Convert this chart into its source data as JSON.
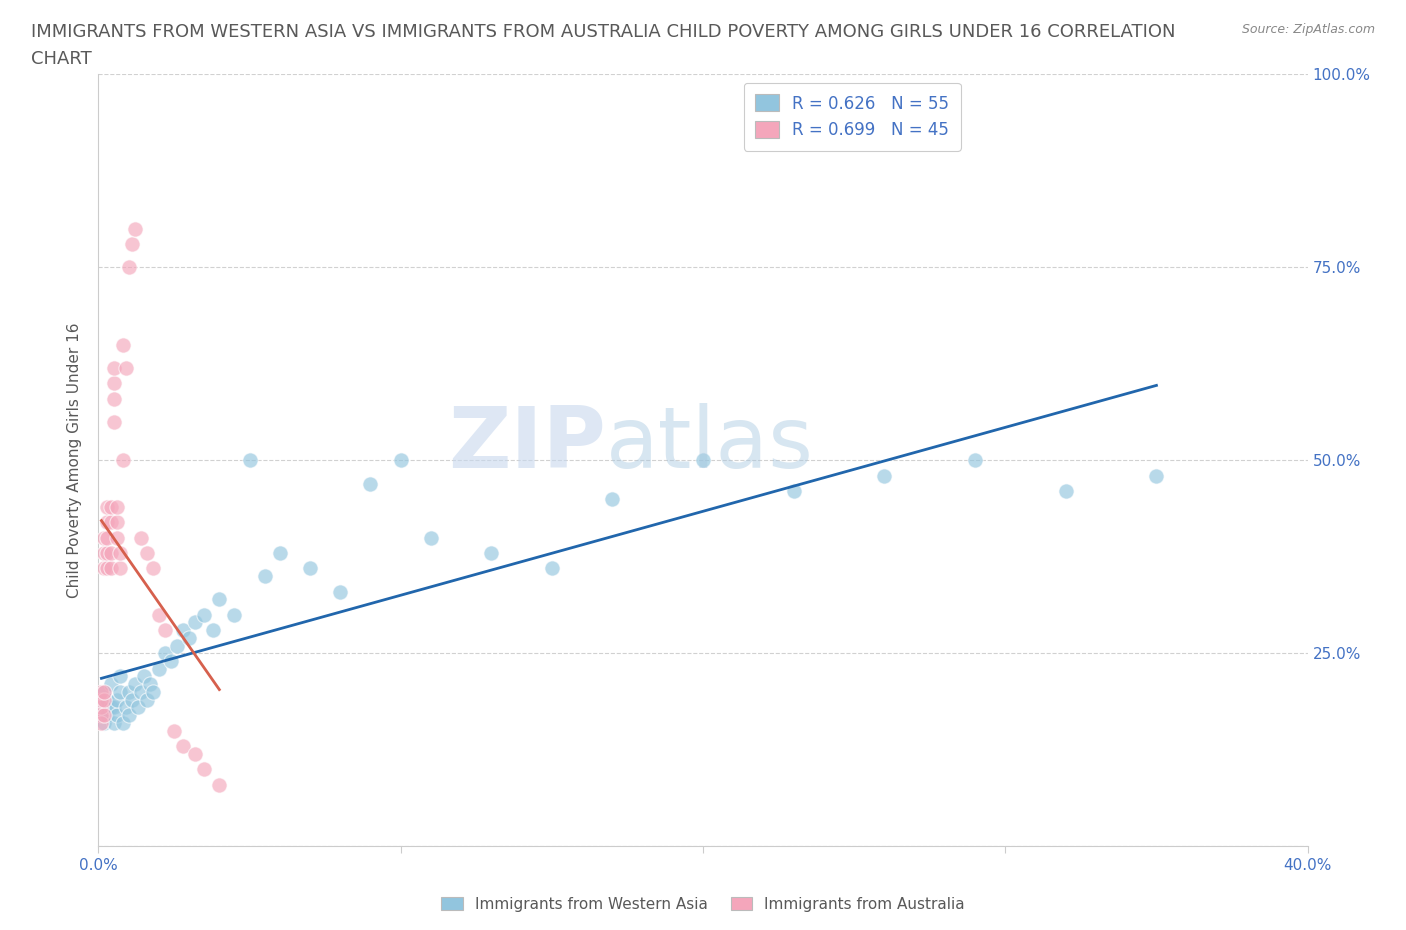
{
  "title": "IMMIGRANTS FROM WESTERN ASIA VS IMMIGRANTS FROM AUSTRALIA CHILD POVERTY AMONG GIRLS UNDER 16 CORRELATION\nCHART",
  "source_text": "Source: ZipAtlas.com",
  "ylabel": "Child Poverty Among Girls Under 16",
  "legend_bottom": [
    "Immigrants from Western Asia",
    "Immigrants from Australia"
  ],
  "R_western_asia": 0.626,
  "N_western_asia": 55,
  "R_australia": 0.699,
  "N_australia": 45,
  "color_western_asia": "#92c5de",
  "color_australia": "#f4a6bb",
  "line_color_western_asia": "#2166ac",
  "line_color_australia": "#d6604d",
  "axis_color": "#4472c4",
  "title_color": "#595959",
  "title_fontsize": 13,
  "western_asia_x": [
    0.001,
    0.001,
    0.002,
    0.002,
    0.002,
    0.003,
    0.003,
    0.004,
    0.004,
    0.005,
    0.005,
    0.006,
    0.006,
    0.007,
    0.007,
    0.008,
    0.009,
    0.01,
    0.01,
    0.011,
    0.012,
    0.013,
    0.014,
    0.015,
    0.016,
    0.017,
    0.018,
    0.02,
    0.022,
    0.024,
    0.026,
    0.028,
    0.03,
    0.032,
    0.035,
    0.038,
    0.04,
    0.045,
    0.05,
    0.055,
    0.06,
    0.07,
    0.08,
    0.09,
    0.1,
    0.11,
    0.13,
    0.15,
    0.17,
    0.2,
    0.23,
    0.26,
    0.29,
    0.32,
    0.35
  ],
  "western_asia_y": [
    0.17,
    0.19,
    0.16,
    0.18,
    0.2,
    0.17,
    0.19,
    0.18,
    0.21,
    0.16,
    0.18,
    0.17,
    0.19,
    0.2,
    0.22,
    0.16,
    0.18,
    0.2,
    0.17,
    0.19,
    0.21,
    0.18,
    0.2,
    0.22,
    0.19,
    0.21,
    0.2,
    0.23,
    0.25,
    0.24,
    0.26,
    0.28,
    0.27,
    0.29,
    0.3,
    0.28,
    0.32,
    0.3,
    0.5,
    0.35,
    0.38,
    0.36,
    0.33,
    0.47,
    0.5,
    0.4,
    0.38,
    0.36,
    0.45,
    0.5,
    0.46,
    0.48,
    0.5,
    0.46,
    0.48
  ],
  "australia_x": [
    0.001,
    0.001,
    0.001,
    0.001,
    0.001,
    0.002,
    0.002,
    0.002,
    0.002,
    0.002,
    0.002,
    0.003,
    0.003,
    0.003,
    0.003,
    0.003,
    0.004,
    0.004,
    0.004,
    0.004,
    0.005,
    0.005,
    0.005,
    0.005,
    0.006,
    0.006,
    0.006,
    0.007,
    0.007,
    0.008,
    0.008,
    0.009,
    0.01,
    0.011,
    0.012,
    0.014,
    0.016,
    0.018,
    0.02,
    0.022,
    0.025,
    0.028,
    0.032,
    0.035,
    0.04
  ],
  "australia_y": [
    0.17,
    0.18,
    0.19,
    0.2,
    0.16,
    0.17,
    0.19,
    0.2,
    0.36,
    0.38,
    0.4,
    0.36,
    0.38,
    0.4,
    0.42,
    0.44,
    0.36,
    0.38,
    0.42,
    0.44,
    0.55,
    0.6,
    0.62,
    0.58,
    0.4,
    0.42,
    0.44,
    0.36,
    0.38,
    0.5,
    0.65,
    0.62,
    0.75,
    0.78,
    0.8,
    0.4,
    0.38,
    0.36,
    0.3,
    0.28,
    0.15,
    0.13,
    0.12,
    0.1,
    0.08
  ],
  "xlim": [
    0.0,
    0.4
  ],
  "ylim": [
    0.0,
    1.0
  ],
  "yticks": [
    0.0,
    0.25,
    0.5,
    0.75,
    1.0
  ],
  "ytick_labels": [
    "",
    "25.0%",
    "50.0%",
    "75.0%",
    "100.0%"
  ],
  "xtick_positions": [
    0.0,
    0.1,
    0.2,
    0.3,
    0.4
  ],
  "xtick_labels": [
    "0.0%",
    "",
    "",
    "",
    "40.0%"
  ]
}
